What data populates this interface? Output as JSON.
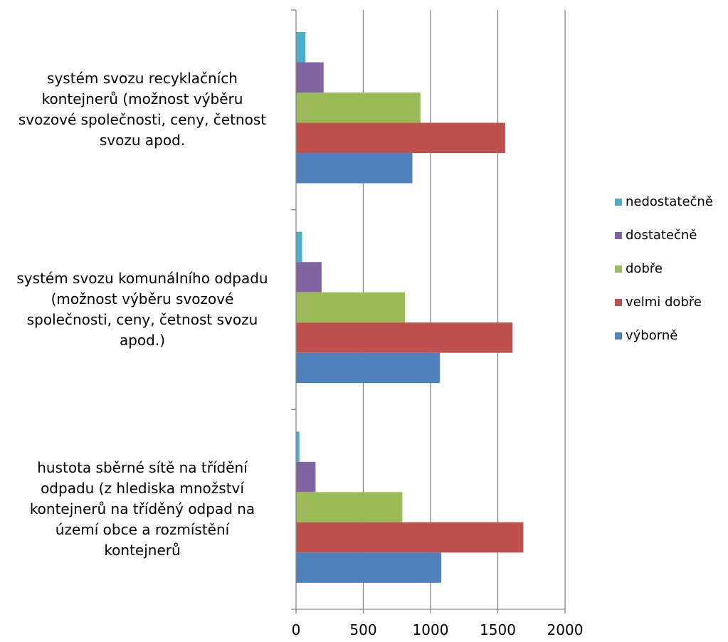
{
  "chart_data": {
    "type": "bar",
    "orientation": "horizontal",
    "categories": [
      "systém svozu recyklačních\nkontejnerů (možnost výběru\nsvozové společnosti, ceny, četnost\nsvozu apod.",
      "systém svozu komunálního odpadu\n(možnost výběru svozové\nspolečnosti, ceny, četnost svozu\napod.)",
      "hustota sběrné sítě na třídění\nodpadu (z hlediska množství\nkontejnerů na tříděný odpad na\núzemí obce a rozmístění\nkontejnerů"
    ],
    "series": [
      {
        "name": "nedostatečně",
        "color": "#4BACC6",
        "values": [
          70,
          45,
          25
        ]
      },
      {
        "name": "dostatečně",
        "color": "#8064A2",
        "values": [
          205,
          190,
          145
        ]
      },
      {
        "name": "dobře",
        "color": "#9BBB59",
        "values": [
          925,
          810,
          790
        ]
      },
      {
        "name": "velmi dobře",
        "color": "#C0504D",
        "values": [
          1555,
          1610,
          1690
        ]
      },
      {
        "name": "výborně",
        "color": "#4F81BD",
        "values": [
          865,
          1070,
          1080
        ]
      }
    ],
    "xlim": [
      0,
      2000
    ],
    "xticks": [
      "0",
      "500",
      "1000",
      "1500",
      "2000"
    ],
    "grid": true,
    "legend_position": "right"
  }
}
